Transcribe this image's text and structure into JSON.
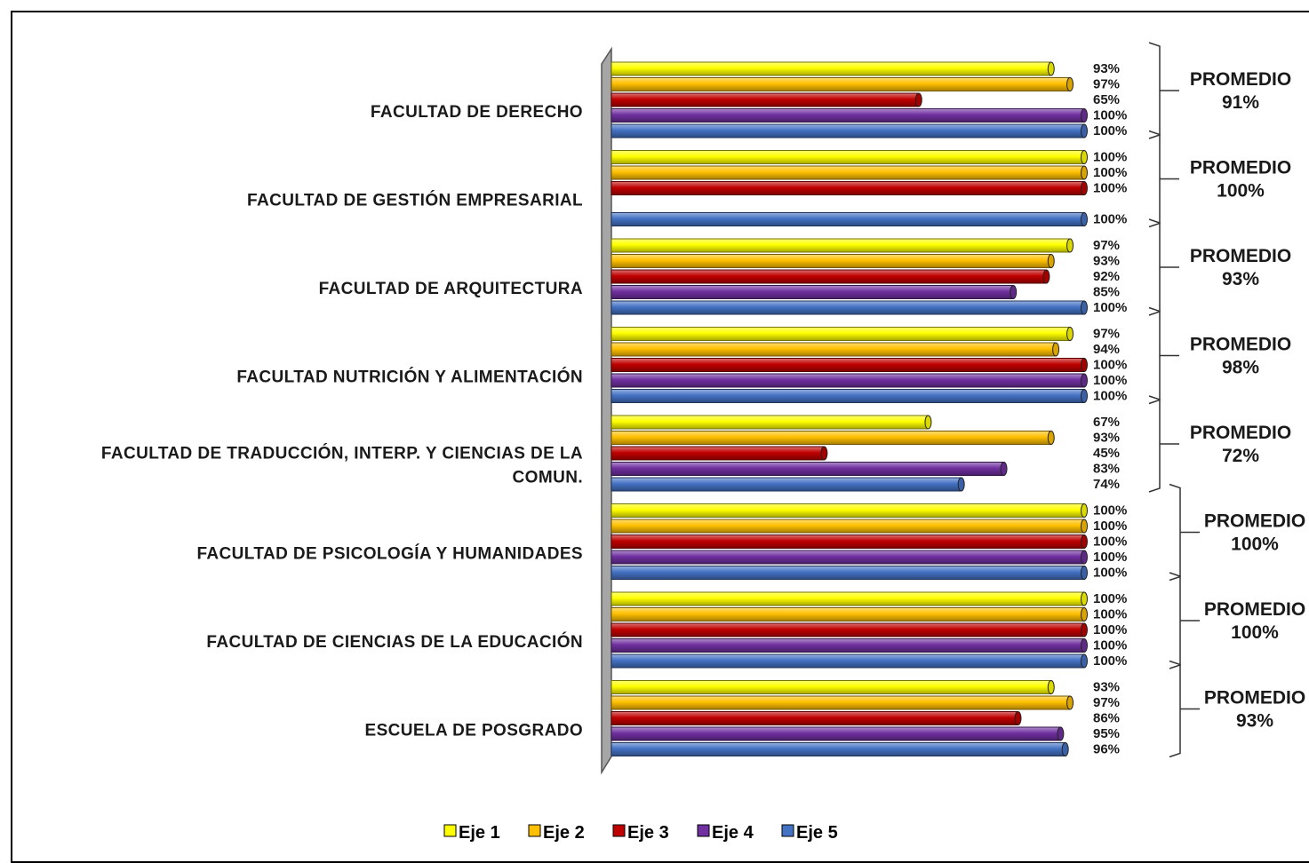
{
  "chart_data": {
    "type": "bar",
    "orientation": "horizontal",
    "three_d": true,
    "categories": [
      "FACULTAD DE DERECHO",
      "FACULTAD DE GESTIÓN EMPRESARIAL",
      "FACULTAD DE ARQUITECTURA",
      "FACULTAD NUTRICIÓN Y ALIMENTACIÓN",
      "FACULTAD DE TRADUCCIÓN, INTERP. Y CIENCIAS DE LA COMUN.",
      "FACULTAD DE PSICOLOGÍA Y HUMANIDADES",
      "FACULTAD DE CIENCIAS DE LA EDUCACIÓN",
      "ESCUELA DE POSGRADO"
    ],
    "category_lines": [
      [
        "FACULTAD DE DERECHO"
      ],
      [
        "FACULTAD DE GESTIÓN EMPRESARIAL"
      ],
      [
        "FACULTAD DE ARQUITECTURA"
      ],
      [
        "FACULTAD NUTRICIÓN Y ALIMENTACIÓN"
      ],
      [
        "FACULTAD DE TRADUCCIÓN, INTERP. Y CIENCIAS DE LA",
        "COMUN."
      ],
      [
        "FACULTAD DE PSICOLOGÍA Y HUMANIDADES"
      ],
      [
        "FACULTAD DE CIENCIAS DE LA EDUCACIÓN"
      ],
      [
        "ESCUELA DE POSGRADO"
      ]
    ],
    "series": [
      {
        "name": "Eje 1",
        "color": "#FFFF00",
        "values": [
          93,
          100,
          97,
          97,
          67,
          100,
          100,
          93
        ]
      },
      {
        "name": "Eje 2",
        "color": "#FFC000",
        "values": [
          97,
          100,
          93,
          94,
          93,
          100,
          100,
          97
        ]
      },
      {
        "name": "Eje 3",
        "color": "#C00000",
        "values": [
          65,
          100,
          92,
          100,
          45,
          100,
          100,
          86
        ]
      },
      {
        "name": "Eje 4",
        "color": "#7030A0",
        "values": [
          100,
          null,
          85,
          100,
          83,
          100,
          100,
          95
        ]
      },
      {
        "name": "Eje 5",
        "color": "#4472C4",
        "values": [
          100,
          100,
          100,
          100,
          74,
          100,
          100,
          96
        ]
      }
    ],
    "value_suffix": "%",
    "xlim": [
      0,
      100
    ],
    "grid": false,
    "legend_position": "bottom",
    "averages": {
      "label": "PROMEDIO",
      "values": [
        "91%",
        "100%",
        "93%",
        "98%",
        "72%",
        "100%",
        "100%",
        "93%"
      ]
    }
  }
}
